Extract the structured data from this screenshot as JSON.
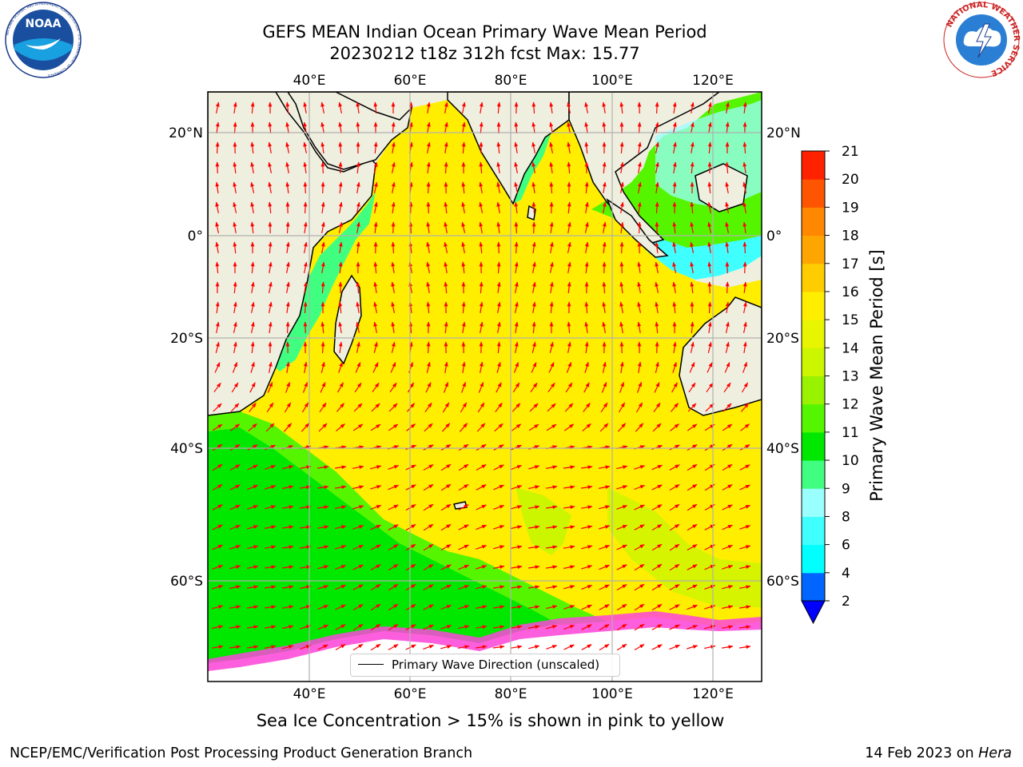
{
  "header": {
    "title_line1": "GEFS MEAN Indian Ocean Primary Wave Mean Period",
    "title_line2": "20230212 t18z 312h fcst   Max: 15.77"
  },
  "logos": {
    "left": {
      "text": "NOAA",
      "ring_text": "NATIONAL OCEANIC AND ATMOSPHERIC ADMINISTRATION · U.S. DEPARTMENT OF COMMERCE",
      "icon": "noaa-logo-icon"
    },
    "right": {
      "ring_text": "NATIONAL WEATHER SERVICE",
      "icon": "nws-logo-icon"
    }
  },
  "map": {
    "lon_ticks_top": [
      "40°E",
      "60°E",
      "80°E",
      "100°E",
      "120°E"
    ],
    "lon_ticks_bottom": [
      "40°E",
      "60°E",
      "80°E",
      "100°E",
      "120°E"
    ],
    "lat_ticks_left": [
      "20°N",
      "0°",
      "20°S",
      "40°S",
      "60°S"
    ],
    "lat_ticks_right": [
      "20°N",
      "0°",
      "20°S",
      "40°S",
      "60°S"
    ],
    "legend_label": "Primary Wave Direction (unscaled)",
    "colors": {
      "land": "#efefdf",
      "ocean_main": "#ffee00",
      "ocean_mid": "#ccf500",
      "ocean_green": "#00ff00",
      "coast_cyan": "#40ffff",
      "arrow": "#ff0000"
    }
  },
  "colorbar": {
    "label": "Primary Wave Mean Period [s]",
    "ticks": [
      "2",
      "4",
      "6",
      "8",
      "9",
      "10",
      "11",
      "12",
      "13",
      "14",
      "15",
      "16",
      "17",
      "18",
      "19",
      "20",
      "21"
    ],
    "colors": [
      "#0066ff",
      "#00ffff",
      "#40ffff",
      "#99ffff",
      "#40ff80",
      "#00e800",
      "#55f500",
      "#99f200",
      "#ccf500",
      "#e8f500",
      "#ffee00",
      "#ffcc00",
      "#ffa500",
      "#ff8800",
      "#ff5500",
      "#ff2200"
    ],
    "extend_color": "#0000ff"
  },
  "footer": {
    "note": "Sea Ice Concentration > 15% is shown in pink to yellow",
    "left": "NCEP/EMC/Verification Post Processing Product Generation Branch",
    "right_date": "14 Feb 2023 on ",
    "right_host": "Hera"
  }
}
